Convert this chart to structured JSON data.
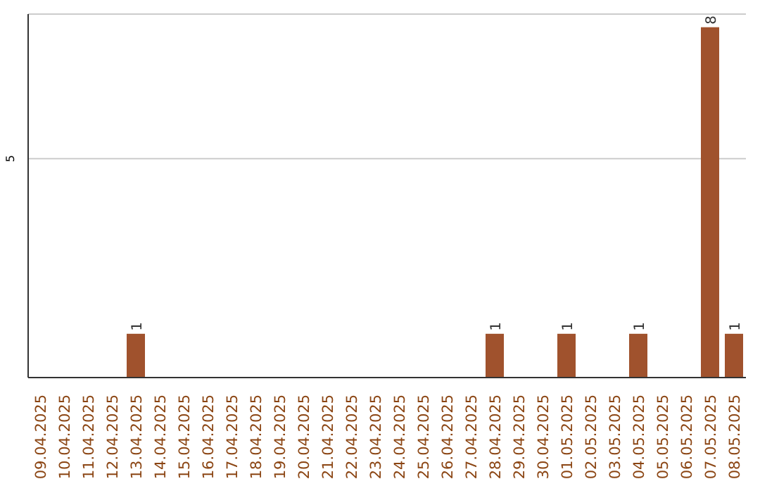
{
  "chart_data": {
    "type": "bar",
    "categories": [
      "09.04.2025",
      "10.04.2025",
      "11.04.2025",
      "12.04.2025",
      "13.04.2025",
      "14.04.2025",
      "15.04.2025",
      "16.04.2025",
      "17.04.2025",
      "18.04.2025",
      "19.04.2025",
      "20.04.2025",
      "21.04.2025",
      "22.04.2025",
      "23.04.2025",
      "24.04.2025",
      "25.04.2025",
      "26.04.2025",
      "27.04.2025",
      "28.04.2025",
      "29.04.2025",
      "30.04.2025",
      "01.05.2025",
      "02.05.2025",
      "03.05.2025",
      "04.05.2025",
      "05.05.2025",
      "06.05.2025",
      "07.05.2025",
      "08.05.2025"
    ],
    "values": [
      0,
      0,
      0,
      0,
      1,
      0,
      0,
      0,
      0,
      0,
      0,
      0,
      0,
      0,
      0,
      0,
      0,
      0,
      0,
      1,
      0,
      0,
      1,
      0,
      0,
      1,
      0,
      0,
      8,
      1
    ],
    "value_labels": [
      null,
      null,
      null,
      null,
      "1",
      null,
      null,
      null,
      null,
      null,
      null,
      null,
      null,
      null,
      null,
      null,
      null,
      null,
      null,
      "1",
      null,
      null,
      "1",
      null,
      null,
      "1",
      null,
      null,
      "8",
      "1"
    ],
    "color": "#a0522d",
    "ylim": [
      0,
      8.3
    ],
    "yticks": [
      5
    ],
    "grid": "y"
  }
}
